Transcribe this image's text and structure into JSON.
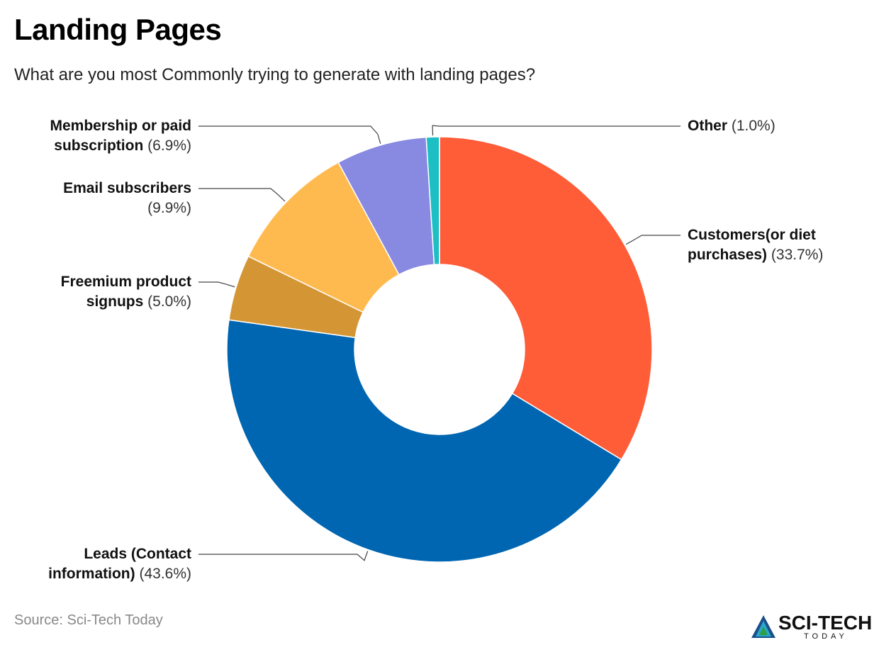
{
  "title": "Landing Pages",
  "subtitle": "What are you most Commonly trying to generate with landing pages?",
  "source": "Source: Sci-Tech Today",
  "logo": {
    "word": "SCI-TECH",
    "tag": "TODAY"
  },
  "chart_data": {
    "type": "pie",
    "variant": "donut",
    "start_angle_deg": 0,
    "direction": "clockwise",
    "slices": [
      {
        "name": "Customers(or diet purchases)",
        "label_name_lines": [
          "Customers(or diet",
          "purchases)"
        ],
        "pct_text": "(33.7%)",
        "value": 33.7,
        "color": "#FF5C38",
        "side": "right"
      },
      {
        "name": "Leads (Contact information)",
        "label_name_lines": [
          "Leads (Contact",
          "information)"
        ],
        "pct_text": "(43.6%)",
        "value": 43.6,
        "color": "#0066B1",
        "side": "left"
      },
      {
        "name": "Freemium product signups",
        "label_name_lines": [
          "Freemium product",
          "signups"
        ],
        "pct_text": "(5.0%)",
        "value": 5.0,
        "color": "#D49535",
        "side": "left"
      },
      {
        "name": "Email subscribers",
        "label_name_lines": [
          "Email subscribers",
          ""
        ],
        "pct_text": "(9.9%)",
        "value": 9.9,
        "color": "#FFBA4F",
        "side": "left"
      },
      {
        "name": "Membership or paid subscription",
        "label_name_lines": [
          "Membership or paid",
          "subscription"
        ],
        "pct_text": "(6.9%)",
        "value": 6.9,
        "color": "#8889E0",
        "side": "left"
      },
      {
        "name": "Other",
        "label_name_lines": [
          "Other"
        ],
        "pct_text": "(1.0%)",
        "value": 1.0,
        "color": "#1BBFC4",
        "side": "right"
      }
    ]
  }
}
